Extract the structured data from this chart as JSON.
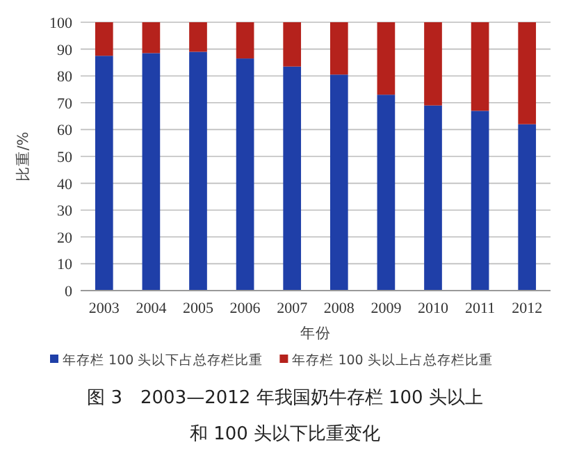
{
  "chart_data": {
    "type": "bar",
    "stacked": true,
    "title": "图 3　2003—2012 年我国奶牛存栏 100 头以上和 100 头以下比重变化",
    "xlabel": "年份",
    "ylabel": "比重/%",
    "categories": [
      "2003",
      "2004",
      "2005",
      "2006",
      "2007",
      "2008",
      "2009",
      "2010",
      "2011",
      "2012"
    ],
    "series": [
      {
        "name": "年存栏 100 头以下占总存栏比重",
        "color": "#1f3fa8",
        "values": [
          87.5,
          88.5,
          89,
          86.5,
          83.5,
          80.5,
          73,
          69,
          67,
          62
        ]
      },
      {
        "name": "年存栏 100 头以上占总存栏比重",
        "color": "#b5221c",
        "values": [
          12.5,
          11.5,
          11,
          13.5,
          16.5,
          19.5,
          27,
          31,
          33,
          38
        ]
      }
    ],
    "ylim": [
      0,
      100
    ],
    "yticks": [
      0,
      10,
      20,
      30,
      40,
      50,
      60,
      70,
      80,
      90,
      100
    ],
    "grid": "y",
    "legend": "bottom"
  }
}
